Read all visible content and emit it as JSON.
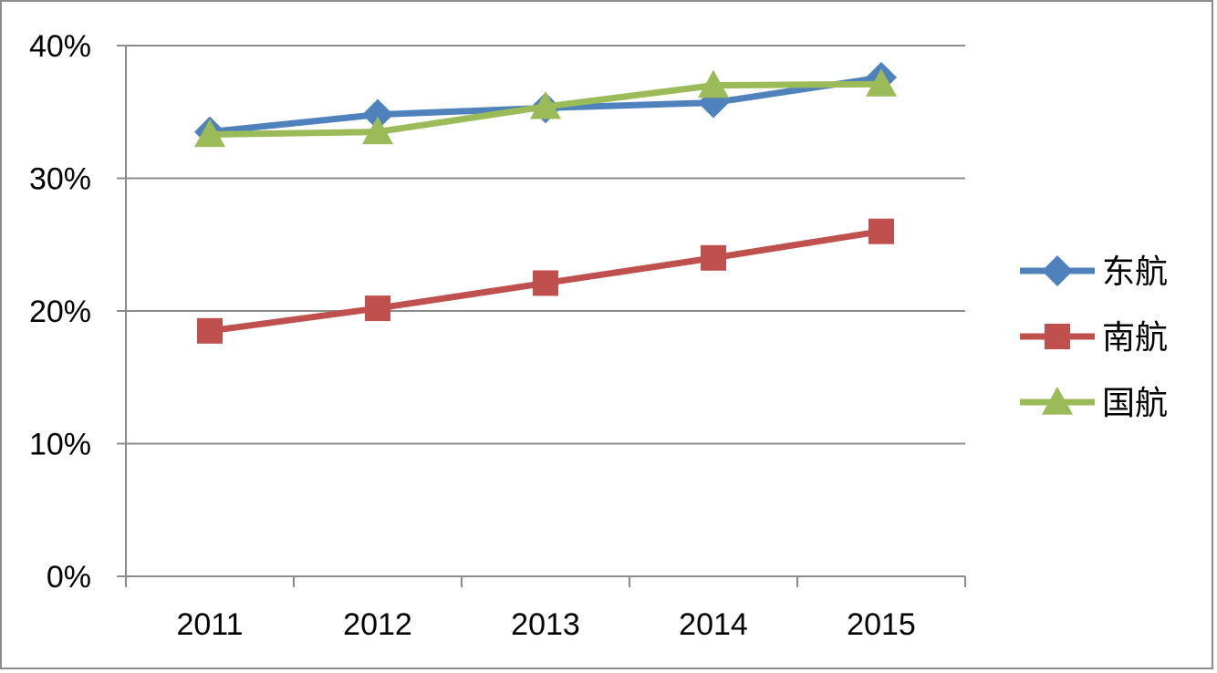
{
  "chart_data": {
    "type": "line",
    "title": "",
    "xlabel": "",
    "ylabel": "",
    "categories": [
      "2011",
      "2012",
      "2013",
      "2014",
      "2015"
    ],
    "ylim": [
      0,
      40
    ],
    "yticks": [
      {
        "value": 0,
        "label": "0%"
      },
      {
        "value": 10,
        "label": "10%"
      },
      {
        "value": 20,
        "label": "20%"
      },
      {
        "value": 30,
        "label": "30%"
      },
      {
        "value": 40,
        "label": "40%"
      }
    ],
    "grid": true,
    "legend_position": "right",
    "series": [
      {
        "name": "东航",
        "color": "#4F81BD",
        "marker": "diamond",
        "values": [
          33.5,
          34.8,
          35.3,
          35.7,
          37.6
        ]
      },
      {
        "name": "南航",
        "color": "#C0504D",
        "marker": "square",
        "values": [
          18.5,
          20.2,
          22.1,
          24.0,
          26.0
        ]
      },
      {
        "name": "国航",
        "color": "#9BBB59",
        "marker": "triangle",
        "values": [
          33.3,
          33.5,
          35.4,
          37.0,
          37.1
        ]
      }
    ]
  }
}
